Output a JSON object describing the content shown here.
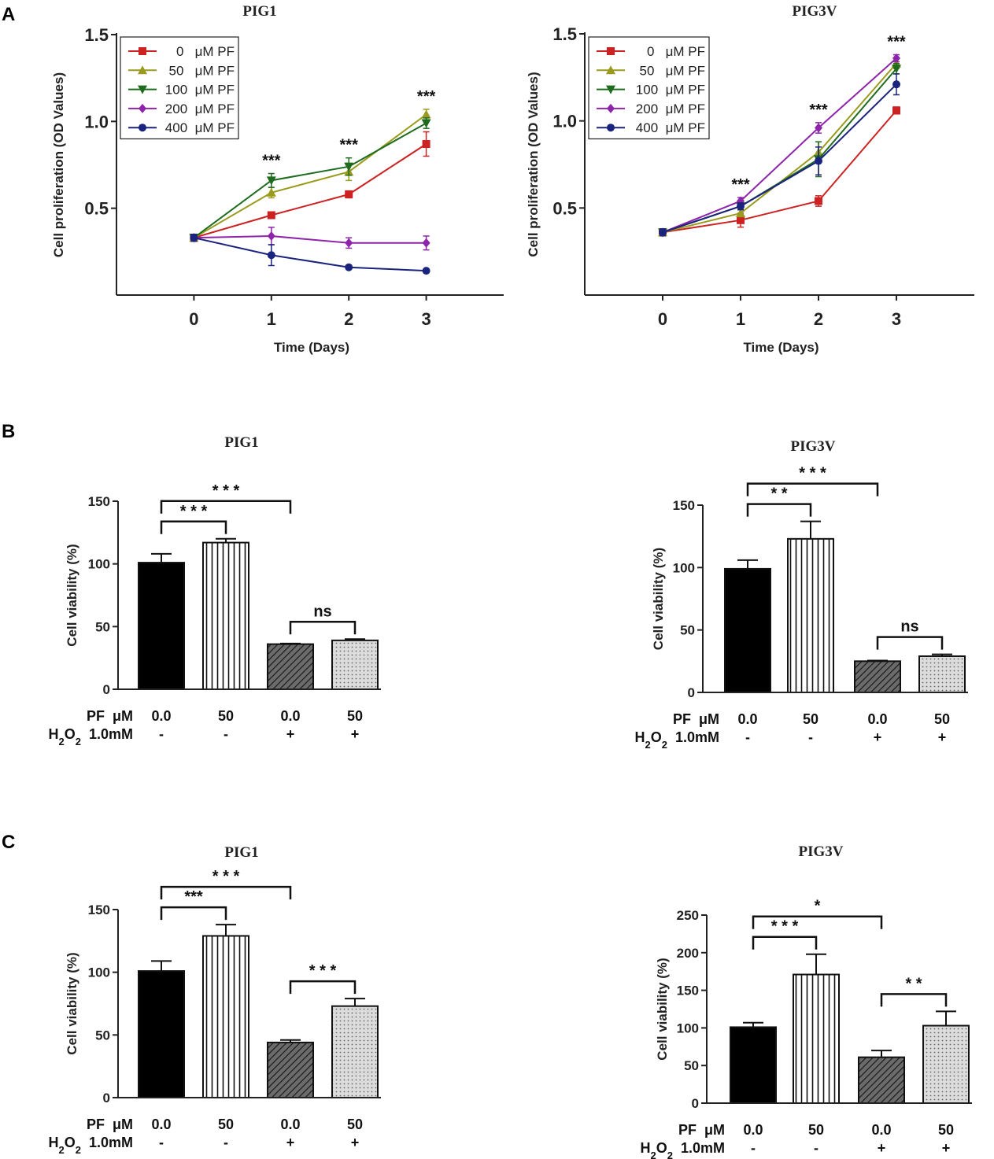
{
  "panel_labels": [
    "A",
    "B",
    "C"
  ],
  "chart_data": [
    {
      "id": "A-left",
      "panel": "A",
      "type": "line",
      "title": "PIG1",
      "xlabel": "Time (Days)",
      "ylabel": "Cell proliferation (OD Values)",
      "x": [
        0,
        1,
        2,
        3
      ],
      "xlim": [
        -1,
        4
      ],
      "ylim": [
        0.0,
        1.5
      ],
      "yticks": [
        0.5,
        1.0,
        1.5
      ],
      "ytick_labels": [
        "0.5",
        "1.0",
        "1.5"
      ],
      "xtick_labels": [
        "0",
        "1",
        "2",
        "3"
      ],
      "legend": "top-left",
      "series": [
        {
          "name": "0   μM PF",
          "color": "#cc2222",
          "marker": "square",
          "values": [
            0.33,
            0.46,
            0.58,
            0.87
          ],
          "errors": [
            0.02,
            0.01,
            0.02,
            0.07
          ]
        },
        {
          "name": "50   μM PF",
          "color": "#9a9a1c",
          "marker": "triangle-up",
          "values": [
            0.33,
            0.59,
            0.71,
            1.04
          ],
          "errors": [
            0.02,
            0.03,
            0.05,
            0.03
          ]
        },
        {
          "name": "100  μM PF",
          "color": "#1e6b1e",
          "marker": "triangle-down",
          "values": [
            0.33,
            0.66,
            0.74,
            0.99
          ],
          "errors": [
            0.02,
            0.04,
            0.05,
            0.03
          ]
        },
        {
          "name": "200  μM PF",
          "color": "#8e24aa",
          "marker": "diamond",
          "values": [
            0.33,
            0.34,
            0.3,
            0.3
          ],
          "errors": [
            0.02,
            0.05,
            0.03,
            0.04
          ]
        },
        {
          "name": "400  μM PF",
          "color": "#1a237e",
          "marker": "circle",
          "values": [
            0.33,
            0.23,
            0.16,
            0.14
          ],
          "errors": [
            0.02,
            0.06,
            0.01,
            0.01
          ]
        }
      ],
      "annotations": [
        {
          "x": 1,
          "text": "***"
        },
        {
          "x": 2,
          "text": "***"
        },
        {
          "x": 3,
          "text": "***"
        }
      ]
    },
    {
      "id": "A-right",
      "panel": "A",
      "type": "line",
      "title": "PIG3V",
      "xlabel": "Time (Days)",
      "ylabel": "Cell proliferation (OD Values)",
      "x": [
        0,
        1,
        2,
        3
      ],
      "xlim": [
        -1,
        4
      ],
      "ylim": [
        0.0,
        1.5
      ],
      "yticks": [
        0.5,
        1.0,
        1.5
      ],
      "ytick_labels": [
        "0.5",
        "1.0",
        "1.5"
      ],
      "xtick_labels": [
        "0",
        "1",
        "2",
        "3"
      ],
      "legend": "top-left",
      "series": [
        {
          "name": "0   μM PF",
          "color": "#cc2222",
          "marker": "square",
          "values": [
            0.36,
            0.43,
            0.54,
            1.06
          ],
          "errors": [
            0.02,
            0.04,
            0.03,
            0.02
          ]
        },
        {
          "name": "50   μM PF",
          "color": "#9a9a1c",
          "marker": "triangle-up",
          "values": [
            0.36,
            0.47,
            0.82,
            1.33
          ],
          "errors": [
            0.02,
            0.02,
            0.06,
            0.03
          ]
        },
        {
          "name": "100  μM PF",
          "color": "#1e6b1e",
          "marker": "triangle-down",
          "values": [
            0.36,
            0.51,
            0.78,
            1.3
          ],
          "errors": [
            0.02,
            0.02,
            0.1,
            0.03
          ]
        },
        {
          "name": "200  μM PF",
          "color": "#8e24aa",
          "marker": "diamond",
          "values": [
            0.36,
            0.54,
            0.96,
            1.36
          ],
          "errors": [
            0.02,
            0.02,
            0.03,
            0.02
          ]
        },
        {
          "name": "400  μM PF",
          "color": "#1a237e",
          "marker": "circle",
          "values": [
            0.36,
            0.51,
            0.77,
            1.21
          ],
          "errors": [
            0.02,
            0.02,
            0.08,
            0.06
          ]
        }
      ],
      "annotations": [
        {
          "x": 1,
          "text": "***"
        },
        {
          "x": 2,
          "text": "***"
        },
        {
          "x": 3,
          "text": "***"
        }
      ]
    },
    {
      "id": "B-left",
      "panel": "B",
      "type": "bar",
      "title": "PIG1",
      "ylabel": "Cell viability (%)",
      "ylim": [
        0,
        150
      ],
      "yticks": [
        0,
        50,
        100,
        150
      ],
      "ytick_labels": [
        "0",
        "50",
        "100",
        "150"
      ],
      "categories": [
        "0.0",
        "50",
        "0.0",
        "50"
      ],
      "values": [
        101,
        117,
        36,
        39
      ],
      "errors": [
        7,
        3,
        0.5,
        1
      ],
      "row_labels": [
        "PF  μM",
        "1.0mM"
      ],
      "h2o2": [
        "-",
        "-",
        "+",
        "+"
      ],
      "comparisons": [
        {
          "from": 0,
          "to": 1,
          "text": "* * *",
          "level": 1
        },
        {
          "from": 0,
          "to": 2,
          "text": "* * *",
          "level": 2
        },
        {
          "from": 2,
          "to": 3,
          "text": "ns",
          "level": 0
        }
      ]
    },
    {
      "id": "B-right",
      "panel": "B",
      "type": "bar",
      "title": "PIG3V",
      "ylabel": "Cell viability (%)",
      "ylim": [
        0,
        150
      ],
      "yticks": [
        0,
        50,
        100,
        150
      ],
      "ytick_labels": [
        "0",
        "50",
        "100",
        "150"
      ],
      "categories": [
        "0.0",
        "50",
        "0.0",
        "50"
      ],
      "values": [
        99,
        123,
        25,
        29
      ],
      "errors": [
        7,
        14,
        0.5,
        1.5
      ],
      "row_labels": [
        "PF  μM",
        "1.0mM"
      ],
      "h2o2": [
        "-",
        "-",
        "+",
        "+"
      ],
      "comparisons": [
        {
          "from": 0,
          "to": 1,
          "text": "* *",
          "level": 1
        },
        {
          "from": 0,
          "to": 2,
          "text": "* * *",
          "level": 2
        },
        {
          "from": 2,
          "to": 3,
          "text": "ns",
          "level": 0
        }
      ]
    },
    {
      "id": "C-left",
      "panel": "C",
      "type": "bar",
      "title": "PIG1",
      "ylabel": "Cell viability (%)",
      "ylim": [
        0,
        150
      ],
      "yticks": [
        0,
        50,
        100,
        150
      ],
      "ytick_labels": [
        "0",
        "50",
        "100",
        "150"
      ],
      "categories": [
        "0.0",
        "50",
        "0.0",
        "50"
      ],
      "values": [
        101,
        129,
        44,
        73
      ],
      "errors": [
        8,
        9,
        2,
        6
      ],
      "row_labels": [
        "PF  μM",
        "1.0mM"
      ],
      "h2o2": [
        "-",
        "-",
        "+",
        "+"
      ],
      "comparisons": [
        {
          "from": 0,
          "to": 1,
          "text": "***",
          "level": 1
        },
        {
          "from": 0,
          "to": 2,
          "text": "* * *",
          "level": 2
        },
        {
          "from": 2,
          "to": 3,
          "text": "* * *",
          "level": 0
        }
      ]
    },
    {
      "id": "C-right",
      "panel": "C",
      "type": "bar",
      "title": "PIG3V",
      "ylabel": "Cell viability (%)",
      "ylim": [
        0,
        250
      ],
      "yticks": [
        0,
        50,
        100,
        150,
        200,
        250
      ],
      "ytick_labels": [
        "0",
        "50",
        "100",
        "150",
        "200",
        "250"
      ],
      "categories": [
        "0.0",
        "50",
        "0.0",
        "50"
      ],
      "values": [
        101,
        171,
        61,
        103
      ],
      "errors": [
        6,
        27,
        9,
        19
      ],
      "row_labels": [
        "PF  μM",
        "1.0mM"
      ],
      "h2o2": [
        "-",
        "-",
        "+",
        "+"
      ],
      "comparisons": [
        {
          "from": 0,
          "to": 1,
          "text": "* * *",
          "level": 1
        },
        {
          "from": 0,
          "to": 2,
          "text": "*",
          "level": 2
        },
        {
          "from": 2,
          "to": 3,
          "text": "* *",
          "level": 0
        }
      ]
    }
  ]
}
